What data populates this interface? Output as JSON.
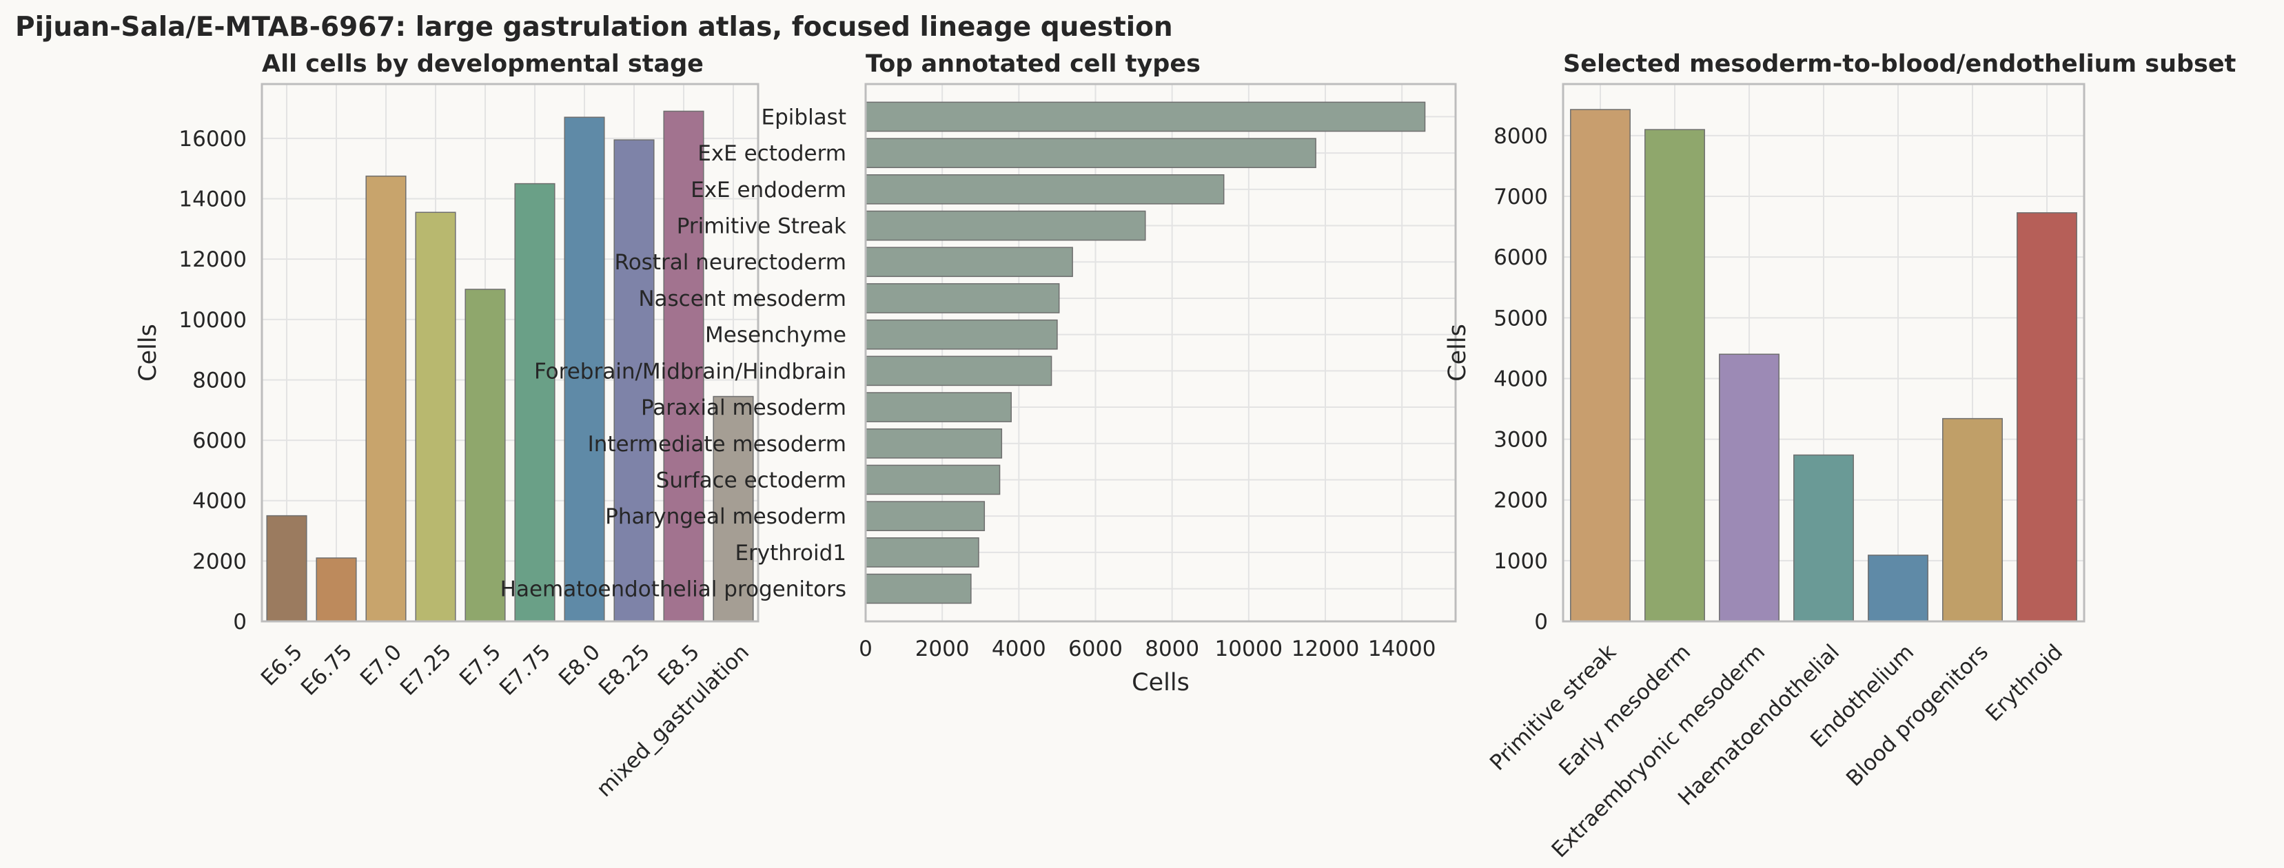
{
  "suptitle": "Pijuan-Sala/E-MTAB-6967: large gastrulation atlas, focused lineage question",
  "colors": {
    "background": "#faf9f6",
    "grid": "#e3e3e3",
    "spine": "#bdbdbd",
    "text": "#262626",
    "bar_edge": "#6e6e6e"
  },
  "chart_data": [
    {
      "type": "bar",
      "title": "All cells by developmental stage",
      "xlabel": "",
      "ylabel": "Cells",
      "categories": [
        "E6.5",
        "E6.75",
        "E7.0",
        "E7.25",
        "E7.5",
        "E7.75",
        "E8.0",
        "E8.25",
        "E8.5",
        "mixed_gastrulation"
      ],
      "values": [
        3500,
        2100,
        14750,
        13550,
        11000,
        14500,
        16700,
        15950,
        16900,
        7450
      ],
      "colors": [
        "#9b7b5f",
        "#bd8a5c",
        "#c8a46c",
        "#b8b86f",
        "#8fa76c",
        "#6aa087",
        "#5f8aa7",
        "#7e83a8",
        "#a2738f",
        "#a59e94"
      ],
      "ylim": [
        0,
        17800
      ],
      "yticks": [
        0,
        2000,
        4000,
        6000,
        8000,
        10000,
        12000,
        14000,
        16000
      ],
      "grid": true
    },
    {
      "type": "bar",
      "orientation": "horizontal",
      "title": "Top annotated cell types",
      "xlabel": "Cells",
      "ylabel": "",
      "categories": [
        "Epiblast",
        "ExE ectoderm",
        "ExE endoderm",
        "Primitive Streak",
        "Rostral neurectoderm",
        "Nascent mesoderm",
        "Mesenchyme",
        "Forebrain/Midbrain/Hindbrain",
        "Paraxial mesoderm",
        "Intermediate mesoderm",
        "Surface ectoderm",
        "Pharyngeal mesoderm",
        "Erythroid1",
        "Haematoendothelial progenitors"
      ],
      "values": [
        14600,
        11750,
        9350,
        7300,
        5400,
        5050,
        5000,
        4850,
        3800,
        3550,
        3500,
        3100,
        2950,
        2750
      ],
      "color": "#8fa095",
      "xlim": [
        0,
        15400
      ],
      "xticks": [
        0,
        2000,
        4000,
        6000,
        8000,
        10000,
        12000,
        14000
      ],
      "grid": true
    },
    {
      "type": "bar",
      "title": "Selected mesoderm-to-blood/endothelium subset",
      "xlabel": "",
      "ylabel": "Cells",
      "categories": [
        "Primitive streak",
        "Early mesoderm",
        "Extraembryonic mesoderm",
        "Haematoendothelial",
        "Endothelium",
        "Blood progenitors",
        "Erythroid"
      ],
      "values": [
        8430,
        8100,
        4400,
        2740,
        1090,
        3340,
        6730
      ],
      "colors": [
        "#c89e6e",
        "#8fa76c",
        "#9c8ab5",
        "#6a9a96",
        "#5f8aa7",
        "#c09f68",
        "#b65f58"
      ],
      "ylim": [
        0,
        8850
      ],
      "yticks": [
        0,
        1000,
        2000,
        3000,
        4000,
        5000,
        6000,
        7000,
        8000
      ],
      "grid": true
    }
  ]
}
